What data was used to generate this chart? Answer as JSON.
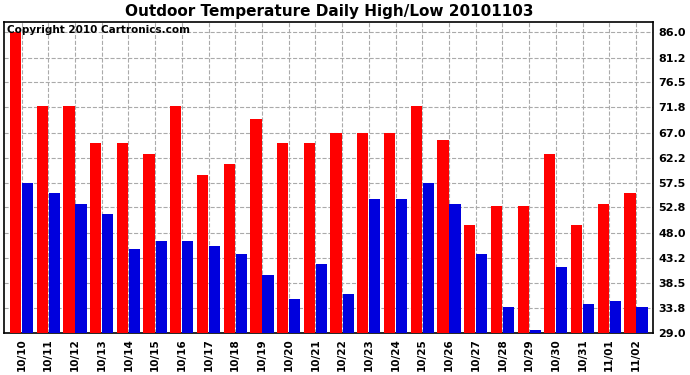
{
  "title": "Outdoor Temperature Daily High/Low 20101103",
  "copyright": "Copyright 2010 Cartronics.com",
  "dates": [
    "10/10",
    "10/11",
    "10/12",
    "10/13",
    "10/14",
    "10/15",
    "10/16",
    "10/17",
    "10/18",
    "10/19",
    "10/20",
    "10/21",
    "10/22",
    "10/23",
    "10/24",
    "10/25",
    "10/26",
    "10/27",
    "10/28",
    "10/29",
    "10/30",
    "10/31",
    "11/01",
    "11/02"
  ],
  "highs": [
    86.0,
    72.0,
    72.0,
    65.0,
    65.0,
    63.0,
    72.0,
    59.0,
    61.0,
    69.5,
    65.0,
    65.0,
    67.0,
    67.0,
    67.0,
    72.0,
    65.5,
    49.5,
    53.0,
    53.0,
    63.0,
    49.5,
    53.5,
    55.5
  ],
  "lows": [
    57.5,
    55.5,
    53.5,
    51.5,
    45.0,
    46.5,
    46.5,
    45.5,
    44.0,
    40.0,
    35.5,
    42.0,
    36.5,
    54.5,
    54.5,
    57.5,
    53.5,
    44.0,
    34.0,
    29.5,
    41.5,
    34.5,
    35.0,
    34.0
  ],
  "high_color": "#ff0000",
  "low_color": "#0000dd",
  "bg_color": "#ffffff",
  "grid_color": "#aaaaaa",
  "ylim_min": 29.0,
  "ylim_max": 88.0,
  "yticks": [
    29.0,
    33.8,
    38.5,
    43.2,
    48.0,
    52.8,
    57.5,
    62.2,
    67.0,
    71.8,
    76.5,
    81.2,
    86.0
  ]
}
